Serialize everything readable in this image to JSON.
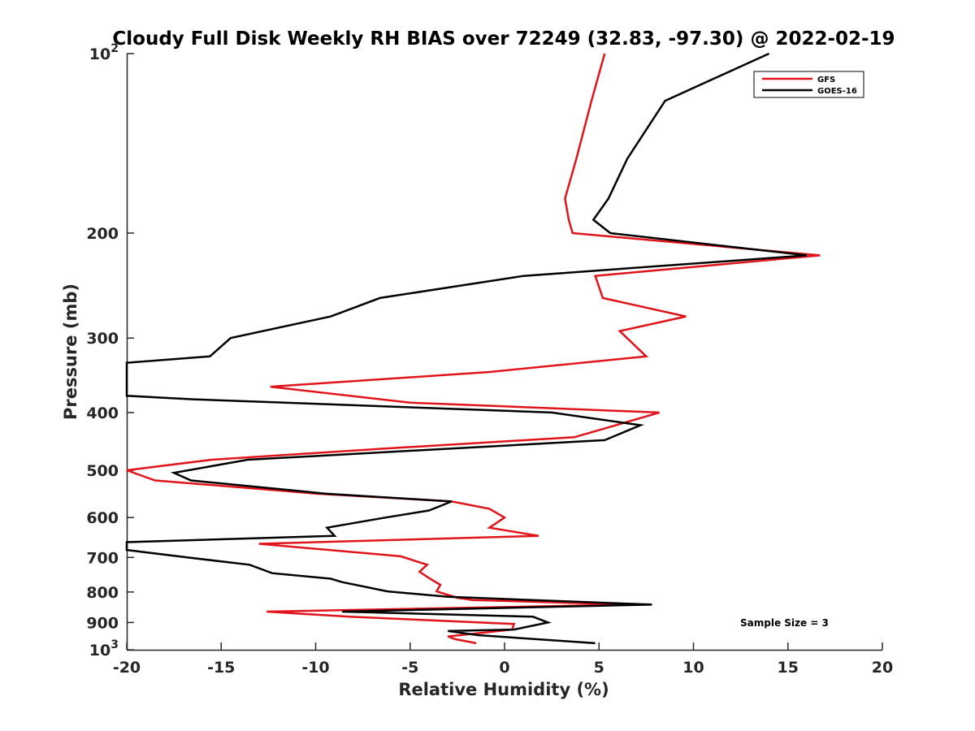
{
  "chart_data": {
    "type": "line",
    "title": "Cloudy Full Disk Weekly RH BIAS over 72249 (32.83, -97.30) @ 2022-02-19",
    "xlabel": "Relative Humidity (%)",
    "ylabel": "Pressure (mb)",
    "xlim": [
      -20,
      20
    ],
    "ylim": [
      100,
      1000
    ],
    "yscale": "log",
    "y_reversed": true,
    "grid": false,
    "legend_position": "top-right",
    "x_ticks": [
      "-20",
      "-15",
      "-10",
      "-5",
      "0",
      "5",
      "10",
      "15",
      "20"
    ],
    "y_ticks": [
      {
        "value": 100,
        "base": "10",
        "exp": "2"
      },
      {
        "value": 200,
        "label": "200"
      },
      {
        "value": 300,
        "label": "300"
      },
      {
        "value": 400,
        "label": "400"
      },
      {
        "value": 500,
        "label": "500"
      },
      {
        "value": 600,
        "label": "600"
      },
      {
        "value": 700,
        "label": "700"
      },
      {
        "value": 800,
        "label": "800"
      },
      {
        "value": 900,
        "label": "900"
      },
      {
        "value": 1000,
        "base": "10",
        "exp": "3"
      }
    ],
    "annotation": "Sample Size = 3",
    "series": [
      {
        "name": "GFS",
        "color": "#e0141a",
        "points": [
          [
            5.3,
            100
          ],
          [
            4.6,
            120
          ],
          [
            3.8,
            150
          ],
          [
            3.2,
            175
          ],
          [
            3.4,
            190
          ],
          [
            3.6,
            200
          ],
          [
            16.7,
            218
          ],
          [
            4.8,
            236
          ],
          [
            5.2,
            257
          ],
          [
            9.6,
            276
          ],
          [
            6.1,
            292
          ],
          [
            7.5,
            322
          ],
          [
            -0.8,
            342
          ],
          [
            -12.4,
            362
          ],
          [
            -5.0,
            385
          ],
          [
            8.2,
            400
          ],
          [
            3.7,
            440
          ],
          [
            -6.5,
            460
          ],
          [
            -15.5,
            480
          ],
          [
            -20.0,
            500
          ],
          [
            -18.5,
            520
          ],
          [
            -10.0,
            547
          ],
          [
            -2.8,
            564
          ],
          [
            -0.8,
            580
          ],
          [
            0.0,
            600
          ],
          [
            -0.8,
            624
          ],
          [
            1.8,
            644
          ],
          [
            -13.0,
            664
          ],
          [
            -5.5,
            697
          ],
          [
            -4.1,
            720
          ],
          [
            -4.5,
            740
          ],
          [
            -4.0,
            758
          ],
          [
            -3.4,
            778
          ],
          [
            -3.6,
            798
          ],
          [
            -2.5,
            818
          ],
          [
            -1.7,
            825
          ],
          [
            6.7,
            840
          ],
          [
            -12.6,
            863
          ],
          [
            -8.2,
            880
          ],
          [
            0.5,
            905
          ],
          [
            0.4,
            925
          ],
          [
            -3.0,
            950
          ],
          [
            -2.6,
            960
          ],
          [
            -1.5,
            975
          ]
        ]
      },
      {
        "name": "GOES-16",
        "color": "#000000",
        "points": [
          [
            14.0,
            100
          ],
          [
            8.5,
            120
          ],
          [
            6.5,
            150
          ],
          [
            5.5,
            175
          ],
          [
            4.7,
            190
          ],
          [
            5.6,
            200
          ],
          [
            16.0,
            218
          ],
          [
            1.0,
            236
          ],
          [
            -6.6,
            257
          ],
          [
            -9.2,
            276
          ],
          [
            -14.5,
            300
          ],
          [
            -15.6,
            322
          ],
          [
            -20.0,
            330
          ],
          [
            -20.0,
            375
          ],
          [
            -16.5,
            380
          ],
          [
            2.5,
            400
          ],
          [
            7.2,
            420
          ],
          [
            5.3,
            445
          ],
          [
            -13.6,
            480
          ],
          [
            -17.5,
            505
          ],
          [
            -16.6,
            520
          ],
          [
            -9.5,
            547
          ],
          [
            -2.8,
            564
          ],
          [
            -4.0,
            584
          ],
          [
            -6.3,
            600
          ],
          [
            -9.4,
            624
          ],
          [
            -9.0,
            644
          ],
          [
            -20.0,
            660
          ],
          [
            -20.0,
            680
          ],
          [
            -16.8,
            700
          ],
          [
            -13.5,
            720
          ],
          [
            -12.3,
            744
          ],
          [
            -9.2,
            760
          ],
          [
            -8.6,
            770
          ],
          [
            -6.2,
            798
          ],
          [
            -3.0,
            815
          ],
          [
            7.8,
            840
          ],
          [
            -8.6,
            863
          ],
          [
            1.5,
            880
          ],
          [
            2.3,
            900
          ],
          [
            0.5,
            925
          ],
          [
            -3.0,
            930
          ],
          [
            -1.4,
            945
          ],
          [
            4.8,
            975
          ]
        ]
      }
    ]
  }
}
